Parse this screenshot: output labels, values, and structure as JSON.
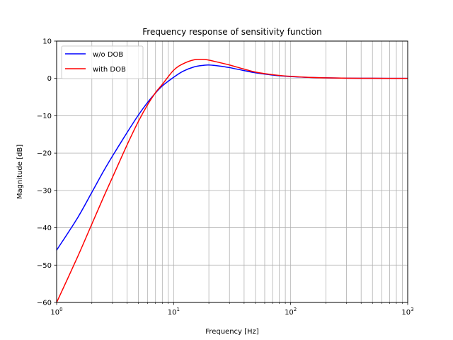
{
  "chart_data": {
    "type": "line",
    "title": "Frequency response of sensitivity function",
    "xlabel": "Frequency [Hz]",
    "ylabel": "Magnitude [dB]",
    "xscale": "log",
    "xlim": [
      1,
      1000
    ],
    "ylim": [
      -60,
      10
    ],
    "grid": "major-and-minor",
    "legend": "top-left",
    "x_ticks": [
      {
        "value": 1,
        "base": "10",
        "exp": "0"
      },
      {
        "value": 10,
        "base": "10",
        "exp": "1"
      },
      {
        "value": 100,
        "base": "10",
        "exp": "2"
      },
      {
        "value": 1000,
        "base": "10",
        "exp": "3"
      }
    ],
    "y_ticks": [
      10,
      0,
      -10,
      -20,
      -30,
      -40,
      -50,
      -60
    ],
    "y_tick_labels": [
      "10",
      "0",
      "−10",
      "−20",
      "−30",
      "−40",
      "−50",
      "−60"
    ],
    "series": [
      {
        "name": "w/o DOB",
        "color": "#0000ff",
        "x": [
          1,
          1.5,
          2,
          2.5,
          3,
          4,
          5,
          6,
          7,
          8,
          10,
          12,
          15,
          18,
          20,
          25,
          30,
          40,
          50,
          70,
          100,
          150,
          200,
          300,
          500,
          1000
        ],
        "y": [
          -46,
          -37.5,
          -30.5,
          -25,
          -20.8,
          -14.5,
          -9.8,
          -6.4,
          -3.9,
          -2.0,
          0.3,
          1.9,
          3.1,
          3.5,
          3.6,
          3.3,
          2.9,
          2.1,
          1.5,
          0.9,
          0.5,
          0.25,
          0.15,
          0.07,
          0.03,
          0.01
        ]
      },
      {
        "name": "with DOB",
        "color": "#ff0000",
        "x": [
          1,
          1.5,
          2,
          2.5,
          3,
          4,
          5,
          6,
          7,
          8,
          10,
          12,
          15,
          18,
          20,
          25,
          30,
          40,
          50,
          70,
          100,
          150,
          200,
          300,
          500,
          1000
        ],
        "y": [
          -60,
          -48,
          -39,
          -32,
          -26.5,
          -17.8,
          -11.5,
          -7,
          -3.8,
          -1.6,
          2.2,
          3.9,
          5.0,
          5.1,
          4.9,
          4.2,
          3.6,
          2.5,
          1.7,
          1.0,
          0.55,
          0.25,
          0.15,
          0.07,
          0.03,
          0.01
        ]
      }
    ]
  }
}
